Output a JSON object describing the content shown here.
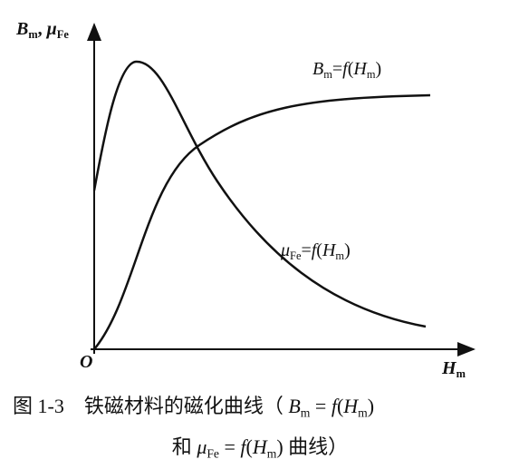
{
  "y_axis_label": {
    "parts": [
      {
        "text": "B",
        "italic": true
      },
      {
        "text": "m",
        "subscript": true
      },
      {
        "text": ", "
      },
      {
        "text": "μ",
        "italic": true
      },
      {
        "text": "Fe",
        "subscript": true
      }
    ]
  },
  "x_axis_label": {
    "parts": [
      {
        "text": "H",
        "italic": true
      },
      {
        "text": "m",
        "subscript": true
      }
    ]
  },
  "origin_label": {
    "parts": [
      {
        "text": "O",
        "italic": true
      }
    ]
  },
  "curve_labels": [
    {
      "parts": [
        {
          "text": "B",
          "italic": true
        },
        {
          "text": "m",
          "subscript": true
        },
        {
          "text": "="
        },
        {
          "text": "f",
          "italic": true
        },
        {
          "text": "("
        },
        {
          "text": "H",
          "italic": true
        },
        {
          "text": "m",
          "subscript": true
        },
        {
          "text": ")"
        }
      ]
    },
    {
      "parts": [
        {
          "text": "μ",
          "italic": true
        },
        {
          "text": "Fe",
          "subscript": true
        },
        {
          "text": "="
        },
        {
          "text": "f",
          "italic": true
        },
        {
          "text": "("
        },
        {
          "text": "H",
          "italic": true
        },
        {
          "text": "m",
          "subscript": true
        },
        {
          "text": ")"
        }
      ]
    }
  ],
  "caption": {
    "line1": {
      "parts": [
        {
          "text": "图 1-3　铁磁材料的磁化曲线（ "
        },
        {
          "text": "B",
          "italic": true
        },
        {
          "text": "m",
          "subscript": true
        },
        {
          "text": " = "
        },
        {
          "text": "f",
          "italic": true
        },
        {
          "text": "("
        },
        {
          "text": "H",
          "italic": true
        },
        {
          "text": "m",
          "subscript": true
        },
        {
          "text": ")"
        }
      ]
    },
    "line2": {
      "parts": [
        {
          "text": "和 "
        },
        {
          "text": "μ",
          "italic": true
        },
        {
          "text": "Fe",
          "subscript": true
        },
        {
          "text": " = "
        },
        {
          "text": "f",
          "italic": true
        },
        {
          "text": "("
        },
        {
          "text": "H",
          "italic": true
        },
        {
          "text": "m",
          "subscript": true
        },
        {
          "text": ") 曲线）"
        }
      ]
    }
  }
}
